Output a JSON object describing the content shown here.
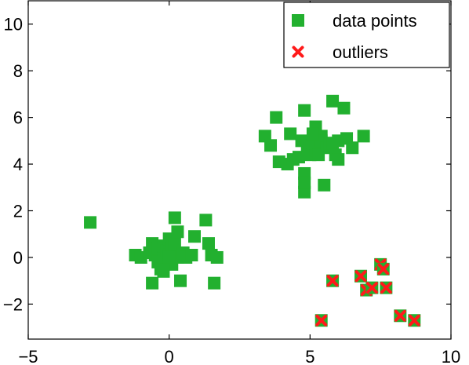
{
  "chart_data": {
    "type": "scatter",
    "title": "",
    "xlabel": "",
    "ylabel": "",
    "xlim": [
      -5,
      10
    ],
    "ylim": [
      -3.5,
      11
    ],
    "x_ticks": [
      "−5",
      "0",
      "5",
      "10"
    ],
    "y_ticks": [
      "−2",
      "0",
      "2",
      "4",
      "6",
      "8",
      "10"
    ],
    "grid": false,
    "legend": {
      "placement": "top-right",
      "entries": [
        "data points",
        "outliers"
      ]
    },
    "colors": {
      "data_points": "#22b02f",
      "outliers": "#ff1a1a"
    },
    "series": [
      {
        "name": "data points",
        "marker": "square",
        "points": [
          [
            -2.8,
            1.5
          ],
          [
            -1.2,
            0.1
          ],
          [
            -1.0,
            0.0
          ],
          [
            -0.7,
            0.2
          ],
          [
            -0.6,
            0.6
          ],
          [
            -0.5,
            0.1
          ],
          [
            -0.4,
            -0.2
          ],
          [
            -0.4,
            0.4
          ],
          [
            -0.3,
            -0.5
          ],
          [
            -0.2,
            0.0
          ],
          [
            -0.2,
            0.5
          ],
          [
            -0.1,
            0.3
          ],
          [
            0.0,
            0.8
          ],
          [
            0.0,
            0.1
          ],
          [
            0.1,
            -0.3
          ],
          [
            0.1,
            0.4
          ],
          [
            0.2,
            1.7
          ],
          [
            0.2,
            0.6
          ],
          [
            0.3,
            1.1
          ],
          [
            0.3,
            0.0
          ],
          [
            0.5,
            0.2
          ],
          [
            0.4,
            -1.0
          ],
          [
            0.6,
            0.0
          ],
          [
            0.8,
            0.1
          ],
          [
            0.9,
            0.9
          ],
          [
            1.3,
            1.6
          ],
          [
            1.4,
            0.6
          ],
          [
            1.5,
            0.1
          ],
          [
            1.6,
            -1.1
          ],
          [
            1.7,
            0.0
          ],
          [
            -0.6,
            -1.1
          ],
          [
            -0.2,
            -0.6
          ],
          [
            0.0,
            0.0
          ],
          [
            3.4,
            5.2
          ],
          [
            3.6,
            4.8
          ],
          [
            3.8,
            6.0
          ],
          [
            3.9,
            4.1
          ],
          [
            4.2,
            4.0
          ],
          [
            4.3,
            5.3
          ],
          [
            4.4,
            4.2
          ],
          [
            4.6,
            4.3
          ],
          [
            4.7,
            5.0
          ],
          [
            4.8,
            6.3
          ],
          [
            4.8,
            3.6
          ],
          [
            4.8,
            2.8
          ],
          [
            4.8,
            3.2
          ],
          [
            4.9,
            4.8
          ],
          [
            5.0,
            4.4
          ],
          [
            5.1,
            4.9
          ],
          [
            5.2,
            4.6
          ],
          [
            5.2,
            5.6
          ],
          [
            5.3,
            4.4
          ],
          [
            5.4,
            5.2
          ],
          [
            5.4,
            5.0
          ],
          [
            5.5,
            3.1
          ],
          [
            5.6,
            4.7
          ],
          [
            5.7,
            4.9
          ],
          [
            5.8,
            6.7
          ],
          [
            5.8,
            4.9
          ],
          [
            5.9,
            4.4
          ],
          [
            6.0,
            4.2
          ],
          [
            6.0,
            5.0
          ],
          [
            6.2,
            6.4
          ],
          [
            6.3,
            5.1
          ],
          [
            6.5,
            4.7
          ],
          [
            6.9,
            5.2
          ],
          [
            5.1,
            5.3
          ]
        ]
      },
      {
        "name": "outliers",
        "marker": "x",
        "points": [
          [
            5.4,
            -2.7
          ],
          [
            5.8,
            -1.0
          ],
          [
            6.8,
            -0.8
          ],
          [
            7.0,
            -1.4
          ],
          [
            7.2,
            -1.3
          ],
          [
            7.5,
            -0.3
          ],
          [
            7.6,
            -0.5
          ],
          [
            7.7,
            -1.3
          ],
          [
            8.2,
            -2.5
          ],
          [
            8.7,
            -2.7
          ]
        ]
      }
    ]
  }
}
